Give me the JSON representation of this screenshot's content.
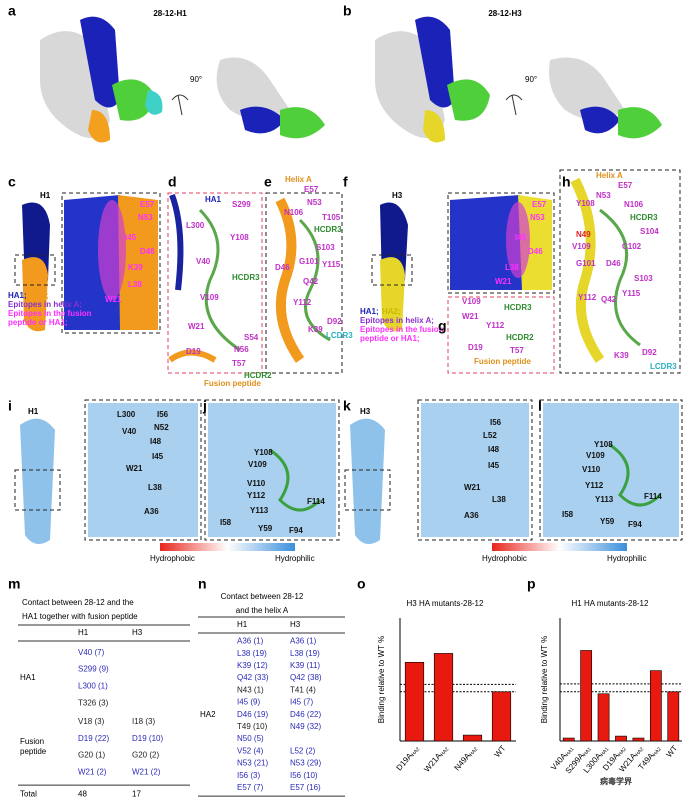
{
  "panels": {
    "a": {
      "letter": "a",
      "title": "28-12-H1",
      "rotation": "90°"
    },
    "b": {
      "letter": "b",
      "title": "28-12-H3",
      "rotation": "90°"
    },
    "c": {
      "letter": "c",
      "title": "H1",
      "legend": [
        "HA1;",
        "HA2;",
        "Epitopes in helix A;",
        "Epitopes in the fusion",
        "peptide or HA1;"
      ],
      "labels": [
        "E57",
        "N53",
        "I45",
        "D46",
        "K39",
        "L38",
        "W21"
      ]
    },
    "d": {
      "letter": "d",
      "labels": [
        "HA1",
        "S299",
        "L300",
        "Y108",
        "V40",
        "HCDR3",
        "V109",
        "W21",
        "D19",
        "N56",
        "S54",
        "T57",
        "HCDR2",
        "Fusion peptide"
      ]
    },
    "e": {
      "letter": "e",
      "labels": [
        "Helix A",
        "E57",
        "N53",
        "N106",
        "T105",
        "HCDR3",
        "S103",
        "G101",
        "D46",
        "Y115",
        "Q42",
        "Y112",
        "K39",
        "D92",
        "LCDR3"
      ]
    },
    "f": {
      "letter": "f",
      "title": "H3",
      "legend": [
        "HA1;",
        "HA2;",
        "Epitopes in helix A;",
        "Epitopes in the fusion",
        "peptide or HA1;"
      ],
      "labels": [
        "E57",
        "N53",
        "I45",
        "D46",
        "L38",
        "W21"
      ]
    },
    "g": {
      "letter": "g",
      "labels": [
        "V109",
        "HCDR3",
        "W21",
        "Y112",
        "HCDR2",
        "D19",
        "T57",
        "Fusion peptide"
      ]
    },
    "h": {
      "letter": "h",
      "labels": [
        "Helix A",
        "E57",
        "N53",
        "Y108",
        "N106",
        "HCDR3",
        "S104",
        "N49",
        "C102",
        "V109",
        "G101",
        "D46",
        "S103",
        "Y115",
        "Y112",
        "Q42",
        "K39",
        "D92",
        "LCDR3"
      ]
    },
    "i": {
      "letter": "i",
      "title": "H1",
      "labels": [
        "L300",
        "I56",
        "N52",
        "V40",
        "I48",
        "I45",
        "W21",
        "L38",
        "A36"
      ]
    },
    "j": {
      "letter": "j",
      "labels": [
        "Y108",
        "V109",
        "V110",
        "Y112",
        "Y113",
        "F114",
        "I58",
        "Y59",
        "F94"
      ]
    },
    "k": {
      "letter": "k",
      "title": "H3",
      "labels": [
        "I56",
        "L52",
        "I48",
        "I45",
        "W21",
        "L38",
        "A36"
      ]
    },
    "l": {
      "letter": "l",
      "labels": [
        "Y108",
        "V109",
        "V110",
        "Y112",
        "Y113",
        "F114",
        "I58",
        "Y59",
        "F94"
      ]
    },
    "m": {
      "letter": "m"
    },
    "n": {
      "letter": "n"
    },
    "o": {
      "letter": "o"
    },
    "p": {
      "letter": "p"
    }
  },
  "colorbars": [
    {
      "low": "Hydrophobic",
      "high": "Hydrophilic"
    },
    {
      "low": "Hydrophobic",
      "high": "Hydrophilic"
    }
  ],
  "table_m": {
    "caption": [
      "Contact between 28-12 and the",
      "HA1 together with fusion peptide"
    ],
    "header": [
      "H1",
      "H3"
    ],
    "groups": [
      {
        "label": "HA1",
        "rows": [
          [
            {
              "text": "V40 (7)",
              "color": "#2a2ab8"
            },
            null
          ],
          [
            {
              "text": "S299 (9)",
              "color": "#2a2ab8"
            },
            null
          ],
          [
            {
              "text": "L300 (1)",
              "color": "#2a2ab8"
            },
            null
          ],
          [
            {
              "text": "T326 (3)",
              "color": "#222222"
            },
            null
          ]
        ]
      },
      {
        "label": "Fusion peptide",
        "rows": [
          [
            {
              "text": "V18 (3)",
              "color": "#222222"
            },
            {
              "text": "I18 (3)",
              "color": "#222222"
            }
          ],
          [
            {
              "text": "D19 (22)",
              "color": "#2a2ab8"
            },
            {
              "text": "D19 (10)",
              "color": "#2a2ab8"
            }
          ],
          [
            {
              "text": "G20 (1)",
              "color": "#222222"
            },
            {
              "text": "G20 (2)",
              "color": "#222222"
            }
          ],
          [
            {
              "text": "W21 (2)",
              "color": "#2a2ab8"
            },
            {
              "text": "W21 (2)",
              "color": "#2a2ab8"
            }
          ]
        ]
      }
    ],
    "total": {
      "label": "Total",
      "values": [
        "48",
        "17"
      ]
    }
  },
  "table_n": {
    "caption": [
      "Contact between 28-12",
      "and the helix A"
    ],
    "header": [
      "H1",
      "H3"
    ],
    "groups": [
      {
        "label": "HA2",
        "rows": [
          [
            {
              "text": "A36 (1)",
              "color": "#2a2ab8"
            },
            {
              "text": "A36 (1)",
              "color": "#2a2ab8"
            }
          ],
          [
            {
              "text": "L38 (19)",
              "color": "#2a2ab8"
            },
            {
              "text": "L38 (19)",
              "color": "#2a2ab8"
            }
          ],
          [
            {
              "text": "K39 (12)",
              "color": "#2a2ab8"
            },
            {
              "text": "K39 (11)",
              "color": "#2a2ab8"
            }
          ],
          [
            {
              "text": "Q42 (33)",
              "color": "#2a2ab8"
            },
            {
              "text": "Q42 (38)",
              "color": "#2a2ab8"
            }
          ],
          [
            {
              "text": "N43 (1)",
              "color": "#222222"
            },
            {
              "text": "T41 (4)",
              "color": "#222222"
            }
          ],
          [
            {
              "text": "I45 (9)",
              "color": "#2a2ab8"
            },
            {
              "text": "I45 (7)",
              "color": "#2a2ab8"
            }
          ],
          [
            {
              "text": "D46 (19)",
              "color": "#2a2ab8"
            },
            {
              "text": "D46 (22)",
              "color": "#2a2ab8"
            }
          ],
          [
            {
              "text": "T49 (10)",
              "color": "#222222"
            },
            {
              "text": "N49 (32)",
              "color": "#2a2ab8"
            }
          ],
          [
            {
              "text": "N50 (5)",
              "color": "#2a2ab8"
            },
            null
          ],
          [
            {
              "text": "V52 (4)",
              "color": "#2a2ab8"
            },
            {
              "text": "L52 (2)",
              "color": "#2a2ab8"
            }
          ],
          [
            {
              "text": "N53 (21)",
              "color": "#2a2ab8"
            },
            {
              "text": "N53 (29)",
              "color": "#2a2ab8"
            }
          ],
          [
            {
              "text": "I56 (3)",
              "color": "#2a2ab8"
            },
            {
              "text": "I56 (10)",
              "color": "#2a2ab8"
            }
          ],
          [
            {
              "text": "E57 (7)",
              "color": "#2a2ab8"
            },
            {
              "text": "E57 (16)",
              "color": "#2a2ab8"
            }
          ]
        ]
      }
    ],
    "total": {
      "label": "Total",
      "values": [
        "144",
        "191"
      ]
    }
  },
  "chart_data": [
    {
      "type": "bar",
      "title": "H3 HA mutants-28-12",
      "y_label": "Binding relative to WT %",
      "categories": [
        "D19A",
        "W21A",
        "N49A",
        "WT"
      ],
      "category_subscripts": [
        "HA2",
        "HA2",
        "HA2",
        null
      ],
      "values": [
        160,
        178,
        12,
        100
      ],
      "color": "#e8190f",
      "ylim": [
        0,
        250
      ],
      "reference_lines": [
        100,
        115
      ]
    },
    {
      "type": "bar",
      "title": "H1 HA mutants-28-12",
      "y_label": "Binding relative to WT %",
      "categories": [
        "V40A",
        "S299A",
        "L300A",
        "D19A",
        "W21A",
        "T49A",
        "WT"
      ],
      "category_subscripts": [
        "HA1",
        "HA1",
        "HA1",
        "HA2",
        "HA2",
        "HA2",
        null
      ],
      "values": [
        6,
        184,
        96,
        10,
        6,
        143,
        100
      ],
      "color": "#e8190f",
      "ylim": [
        0,
        250
      ],
      "reference_lines": [
        100,
        116
      ]
    }
  ],
  "watermark": "病毒学界"
}
